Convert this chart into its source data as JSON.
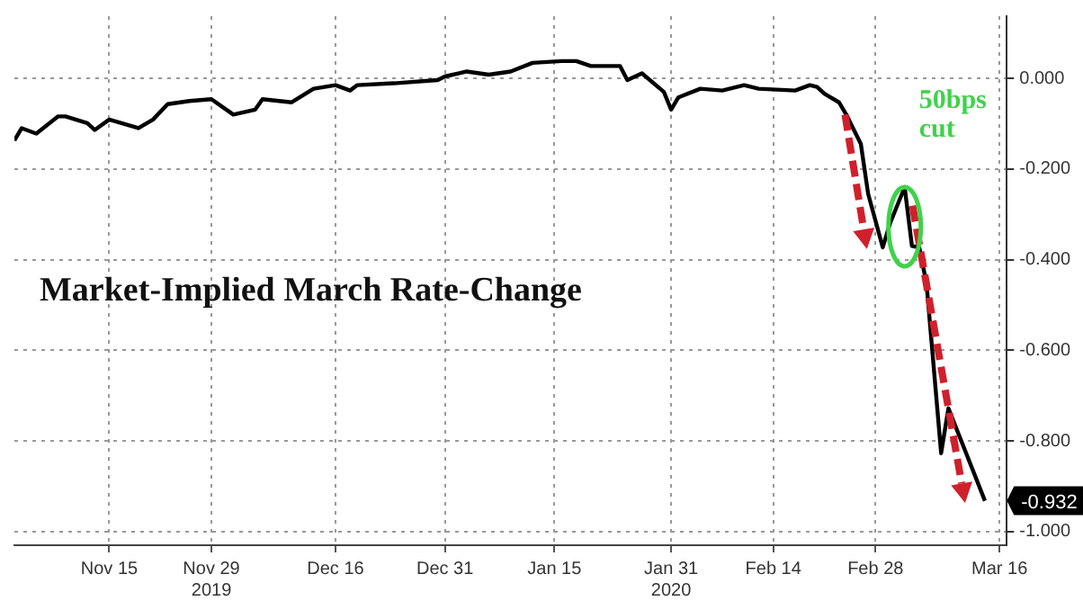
{
  "chart_data": {
    "type": "line",
    "title": "Market-Implied March Rate-Change",
    "x": [
      "2019-11-02",
      "2019-11-03",
      "2019-11-05",
      "2019-11-08",
      "2019-11-09",
      "2019-11-12",
      "2019-11-13",
      "2019-11-15",
      "2019-11-19",
      "2019-11-21",
      "2019-11-23",
      "2019-11-26",
      "2019-11-29",
      "2019-12-02",
      "2019-12-05",
      "2019-12-06",
      "2019-12-10",
      "2019-12-13",
      "2019-12-16",
      "2019-12-18",
      "2019-12-19",
      "2019-12-24",
      "2019-12-30",
      "2019-12-31",
      "2020-01-03",
      "2020-01-06",
      "2020-01-09",
      "2020-01-12",
      "2020-01-16",
      "2020-01-18",
      "2020-01-20",
      "2020-01-24",
      "2020-01-25",
      "2020-01-27",
      "2020-01-30",
      "2020-01-31",
      "2020-02-01",
      "2020-02-04",
      "2020-02-07",
      "2020-02-10",
      "2020-02-12",
      "2020-02-17",
      "2020-02-19",
      "2020-02-20",
      "2020-02-21",
      "2020-02-23",
      "2020-02-24",
      "2020-02-26",
      "2020-02-27",
      "2020-02-29",
      "2020-03-01",
      "2020-03-03",
      "2020-03-04",
      "2020-03-05",
      "2020-03-06",
      "2020-03-08",
      "2020-03-09",
      "2020-03-14"
    ],
    "series": [
      {
        "color": "#000000",
        "values": [
          -0.137,
          -0.11,
          -0.122,
          -0.084,
          -0.084,
          -0.099,
          -0.114,
          -0.091,
          -0.11,
          -0.091,
          -0.057,
          -0.05,
          -0.046,
          -0.08,
          -0.069,
          -0.046,
          -0.053,
          -0.023,
          -0.015,
          -0.027,
          -0.015,
          -0.011,
          -0.004,
          0.004,
          0.015,
          0.008,
          0.015,
          0.034,
          0.038,
          0.038,
          0.027,
          0.027,
          -0.004,
          0.011,
          -0.03,
          -0.069,
          -0.042,
          -0.023,
          -0.027,
          -0.015,
          -0.023,
          -0.027,
          -0.015,
          -0.019,
          -0.034,
          -0.053,
          -0.08,
          -0.145,
          -0.255,
          -0.373,
          -0.32,
          -0.24,
          -0.37,
          -0.373,
          -0.453,
          -0.827,
          -0.728,
          -0.932
        ]
      }
    ],
    "xlim": [
      "2019-11-02",
      "2020-03-17"
    ],
    "xticks": [
      {
        "value": "2019-11-15",
        "label": "Nov 15"
      },
      {
        "value": "2019-11-29",
        "label": "Nov 29\n2019"
      },
      {
        "value": "2019-12-16",
        "label": "Dec 16"
      },
      {
        "value": "2019-12-31",
        "label": "Dec 31"
      },
      {
        "value": "2020-01-15",
        "label": "Jan 15"
      },
      {
        "value": "2020-01-31",
        "label": "Jan 31\n2020"
      },
      {
        "value": "2020-02-14",
        "label": "Feb 14"
      },
      {
        "value": "2020-02-28",
        "label": "Feb 28"
      },
      {
        "value": "2020-03-16",
        "label": "Mar 16"
      }
    ],
    "ylim": [
      -1.03,
      0.137
    ],
    "yticks": [
      {
        "value": 0,
        "label": "0.000"
      },
      {
        "value": -0.2,
        "label": "-0.200"
      },
      {
        "value": -0.4,
        "label": "-0.400"
      },
      {
        "value": -0.6,
        "label": "-0.600"
      },
      {
        "value": -0.8,
        "label": "-0.800"
      },
      {
        "value": -1,
        "label": "-1.000"
      }
    ],
    "grid": true,
    "line_style": "solid",
    "annotations": [
      {
        "text": "50bps\ncut",
        "x": "2020-03-03",
        "y": -0.24
      },
      {
        "text": "-0.932",
        "x": "2020-03-14",
        "y": -0.932
      }
    ]
  }
}
